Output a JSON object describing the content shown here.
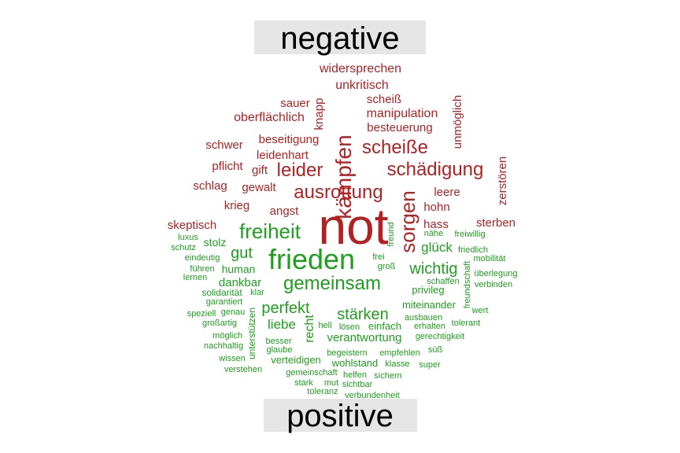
{
  "chart_data": {
    "type": "wordcloud",
    "title": "",
    "groups": [
      {
        "name": "negative",
        "color": "#b22222"
      },
      {
        "name": "positive",
        "color": "#1ea01e"
      }
    ],
    "label_background": "#e5e5e5",
    "words": [
      {
        "text": "not",
        "group": "negative"
      },
      {
        "text": "kämpfen",
        "group": "negative"
      },
      {
        "text": "ausrottung",
        "group": "negative"
      },
      {
        "text": "schädigung",
        "group": "negative"
      },
      {
        "text": "scheiße",
        "group": "negative"
      },
      {
        "text": "leider",
        "group": "negative"
      },
      {
        "text": "sorgen",
        "group": "negative"
      },
      {
        "text": "widersprechen",
        "group": "negative"
      },
      {
        "text": "unkritisch",
        "group": "negative"
      },
      {
        "text": "scheiß",
        "group": "negative"
      },
      {
        "text": "manipulation",
        "group": "negative"
      },
      {
        "text": "sauer",
        "group": "negative"
      },
      {
        "text": "knapp",
        "group": "negative"
      },
      {
        "text": "unmöglich",
        "group": "negative"
      },
      {
        "text": "oberflächlich",
        "group": "negative"
      },
      {
        "text": "besteuerung",
        "group": "negative"
      },
      {
        "text": "beseitigung",
        "group": "negative"
      },
      {
        "text": "schwer",
        "group": "negative"
      },
      {
        "text": "leidenhart",
        "group": "negative"
      },
      {
        "text": "pflicht",
        "group": "negative"
      },
      {
        "text": "gift",
        "group": "negative"
      },
      {
        "text": "zerstören",
        "group": "negative"
      },
      {
        "text": "schlag",
        "group": "negative"
      },
      {
        "text": "gewalt",
        "group": "negative"
      },
      {
        "text": "leere",
        "group": "negative"
      },
      {
        "text": "krieg",
        "group": "negative"
      },
      {
        "text": "angst",
        "group": "negative"
      },
      {
        "text": "hohn",
        "group": "negative"
      },
      {
        "text": "skeptisch",
        "group": "negative"
      },
      {
        "text": "hass",
        "group": "negative"
      },
      {
        "text": "sterben",
        "group": "negative"
      },
      {
        "text": "frieden",
        "group": "positive"
      },
      {
        "text": "freiheit",
        "group": "positive"
      },
      {
        "text": "gemeinsam",
        "group": "positive"
      },
      {
        "text": "stärken",
        "group": "positive"
      },
      {
        "text": "perfekt",
        "group": "positive"
      },
      {
        "text": "wichtig",
        "group": "positive"
      },
      {
        "text": "gut",
        "group": "positive"
      },
      {
        "text": "glück",
        "group": "positive"
      },
      {
        "text": "liebe",
        "group": "positive"
      },
      {
        "text": "dankbar",
        "group": "positive"
      },
      {
        "text": "verantwortung",
        "group": "positive"
      },
      {
        "text": "recht",
        "group": "positive"
      },
      {
        "text": "stolz",
        "group": "positive"
      },
      {
        "text": "human",
        "group": "positive"
      },
      {
        "text": "privileg",
        "group": "positive"
      },
      {
        "text": "miteinander",
        "group": "positive"
      },
      {
        "text": "einfach",
        "group": "positive"
      },
      {
        "text": "wohlstand",
        "group": "positive"
      },
      {
        "text": "verteidigen",
        "group": "positive"
      },
      {
        "text": "unterstützen",
        "group": "positive"
      },
      {
        "text": "solidarität",
        "group": "positive"
      },
      {
        "text": "luxus",
        "group": "positive"
      },
      {
        "text": "schutz",
        "group": "positive"
      },
      {
        "text": "eindeutig",
        "group": "positive"
      },
      {
        "text": "führen",
        "group": "positive"
      },
      {
        "text": "lernen",
        "group": "positive"
      },
      {
        "text": "garantiert",
        "group": "positive"
      },
      {
        "text": "speziell",
        "group": "positive"
      },
      {
        "text": "genau",
        "group": "positive"
      },
      {
        "text": "großartig",
        "group": "positive"
      },
      {
        "text": "möglich",
        "group": "positive"
      },
      {
        "text": "nachhaltig",
        "group": "positive"
      },
      {
        "text": "wissen",
        "group": "positive"
      },
      {
        "text": "verstehen",
        "group": "positive"
      },
      {
        "text": "klar",
        "group": "positive"
      },
      {
        "text": "besser",
        "group": "positive"
      },
      {
        "text": "glaube",
        "group": "positive"
      },
      {
        "text": "nähe",
        "group": "positive"
      },
      {
        "text": "freiwillig",
        "group": "positive"
      },
      {
        "text": "freund",
        "group": "positive"
      },
      {
        "text": "frei",
        "group": "positive"
      },
      {
        "text": "groß",
        "group": "positive"
      },
      {
        "text": "friedlich",
        "group": "positive"
      },
      {
        "text": "mobilität",
        "group": "positive"
      },
      {
        "text": "überlegung",
        "group": "positive"
      },
      {
        "text": "verbinden",
        "group": "positive"
      },
      {
        "text": "schaffen",
        "group": "positive"
      },
      {
        "text": "freundschaft",
        "group": "positive"
      },
      {
        "text": "wert",
        "group": "positive"
      },
      {
        "text": "ausbauen",
        "group": "positive"
      },
      {
        "text": "tolerant",
        "group": "positive"
      },
      {
        "text": "erhalten",
        "group": "positive"
      },
      {
        "text": "gerechtigkeit",
        "group": "positive"
      },
      {
        "text": "hell",
        "group": "positive"
      },
      {
        "text": "lösen",
        "group": "positive"
      },
      {
        "text": "begeistern",
        "group": "positive"
      },
      {
        "text": "empfehlen",
        "group": "positive"
      },
      {
        "text": "süß",
        "group": "positive"
      },
      {
        "text": "klasse",
        "group": "positive"
      },
      {
        "text": "super",
        "group": "positive"
      },
      {
        "text": "gemeinschaft",
        "group": "positive"
      },
      {
        "text": "helfen",
        "group": "positive"
      },
      {
        "text": "sichern",
        "group": "positive"
      },
      {
        "text": "stark",
        "group": "positive"
      },
      {
        "text": "mut",
        "group": "positive"
      },
      {
        "text": "sichtbar",
        "group": "positive"
      },
      {
        "text": "toleranz",
        "group": "positive"
      },
      {
        "text": "verbundenheit",
        "group": "positive"
      }
    ]
  }
}
